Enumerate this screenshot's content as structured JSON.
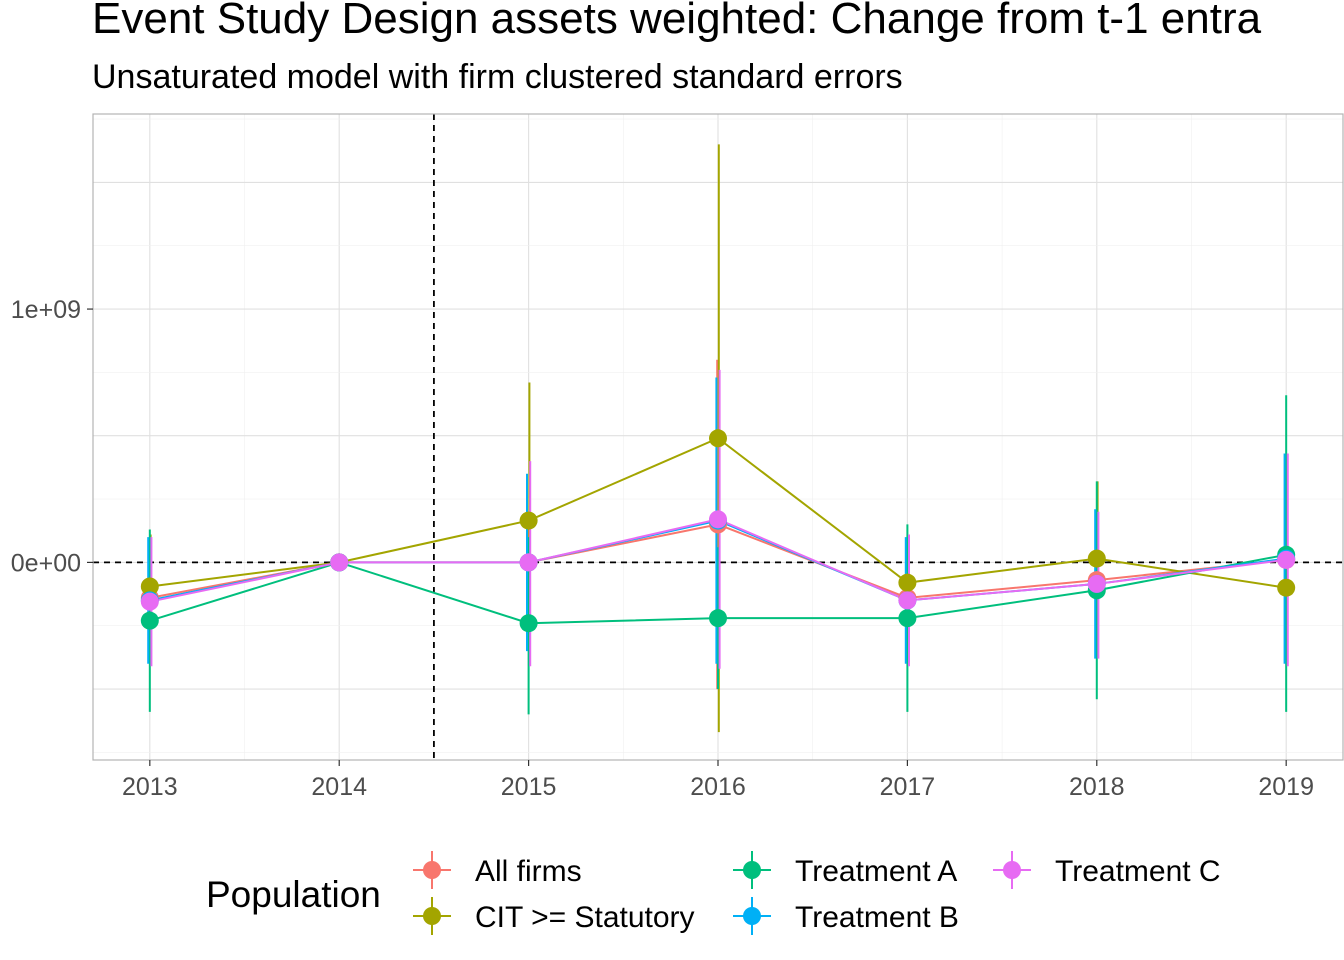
{
  "chart_data": {
    "type": "line",
    "title": "Event Study Design assets weighted: Change from t-1 entra",
    "subtitle": "Unsaturated model with firm clustered standard errors",
    "xlabel": "",
    "ylabel": "",
    "x": [
      2013,
      2014,
      2015,
      2016,
      2017,
      2018,
      2019
    ],
    "xlim": [
      2012.7,
      2019.3
    ],
    "ylim": [
      -780000000,
      1770000000
    ],
    "y_ticks": [
      {
        "value": 0,
        "label": "0e+00"
      },
      {
        "value": 1000000000,
        "label": "1e+09"
      }
    ],
    "reference_lines": {
      "vline_x": 2014.5,
      "hline_y": 0
    },
    "grid": true,
    "legend": {
      "title": "Population",
      "position": "bottom"
    },
    "series": [
      {
        "name": "All firms",
        "color": "#F8766D",
        "values": [
          -140000000,
          0,
          0,
          150000000,
          -140000000,
          -70000000,
          10000000
        ],
        "lower": [
          -300000000,
          0,
          -200000000,
          -500000000,
          -320000000,
          -250000000,
          -150000000
        ],
        "upper": [
          20000000,
          0,
          200000000,
          800000000,
          40000000,
          110000000,
          170000000
        ]
      },
      {
        "name": "CIT >= Statutory",
        "color": "#A3A500",
        "values": [
          -95000000,
          0,
          165000000,
          490000000,
          -80000000,
          15000000,
          -100000000
        ],
        "lower": [
          -300000000,
          0,
          -390000000,
          -670000000,
          -300000000,
          -260000000,
          -300000000
        ],
        "upper": [
          110000000,
          0,
          710000000,
          1650000000,
          110000000,
          320000000,
          100000000
        ]
      },
      {
        "name": "Treatment A",
        "color": "#00BF7D",
        "values": [
          -230000000,
          0,
          -240000000,
          -220000000,
          -220000000,
          -110000000,
          30000000
        ],
        "lower": [
          -590000000,
          0,
          -600000000,
          -500000000,
          -590000000,
          -540000000,
          -590000000
        ],
        "upper": [
          130000000,
          0,
          100000000,
          60000000,
          150000000,
          320000000,
          660000000
        ]
      },
      {
        "name": "Treatment B",
        "color": "#00B0F6",
        "values": [
          -150000000,
          0,
          0,
          165000000,
          -150000000,
          -85000000,
          15000000
        ],
        "lower": [
          -400000000,
          0,
          -350000000,
          -400000000,
          -400000000,
          -380000000,
          -400000000
        ],
        "upper": [
          100000000,
          0,
          350000000,
          730000000,
          100000000,
          210000000,
          430000000
        ]
      },
      {
        "name": "Treatment C",
        "color": "#E76BF3",
        "values": [
          -155000000,
          0,
          0,
          170000000,
          -150000000,
          -85000000,
          10000000
        ],
        "lower": [
          -410000000,
          0,
          -410000000,
          -420000000,
          -410000000,
          -380000000,
          -410000000
        ],
        "upper": [
          100000000,
          0,
          400000000,
          760000000,
          110000000,
          200000000,
          430000000
        ]
      }
    ]
  }
}
